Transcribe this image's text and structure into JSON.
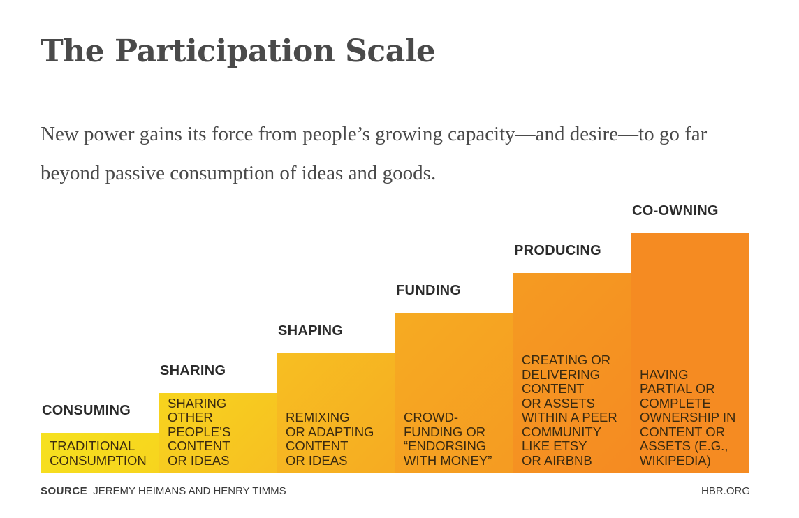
{
  "title": "The Participation Scale",
  "subtitle": "New power gains its force from people’s growing capacity—and desire—to go far beyond passive consumption of ideas and goods.",
  "source_label": "SOURCE",
  "source_text": "JEREMY HEIMANS AND HENRY TIMMS",
  "site": "HBR.ORG",
  "colors": {
    "stage_1": "#f6e11f",
    "stage_2": "#f7d41e",
    "stage_3": "#f7bf22",
    "stage_4": "#f6ab22",
    "stage_5": "#f59b22",
    "stage_6": "#f58b22"
  },
  "chart_data": {
    "type": "bar",
    "categories": [
      "CONSUMING",
      "SHARING",
      "SHAPING",
      "FUNDING",
      "PRODUCING",
      "CO-OWNING"
    ],
    "values": [
      1,
      2,
      3,
      4,
      5,
      6
    ],
    "descriptions": [
      "TRADITIONAL\nCONSUMPTION",
      "SHARING\nOTHER\nPEOPLE’S\nCONTENT\nOR IDEAS",
      "REMIXING\nOR ADAPTING\nCONTENT\nOR IDEAS",
      "CROWD-\nFUNDING OR\n“ENDORSING\nWITH MONEY”",
      "CREATING OR\nDELIVERING\nCONTENT\nOR ASSETS\nWITHIN A PEER\nCOMMUNITY\nLIKE ETSY\nOR AIRBNB",
      "HAVING\nPARTIAL OR\nCOMPLETE\nOWNERSHIP IN\nCONTENT OR\nASSETS (E.G.,\nWIKIPEDIA)"
    ]
  }
}
